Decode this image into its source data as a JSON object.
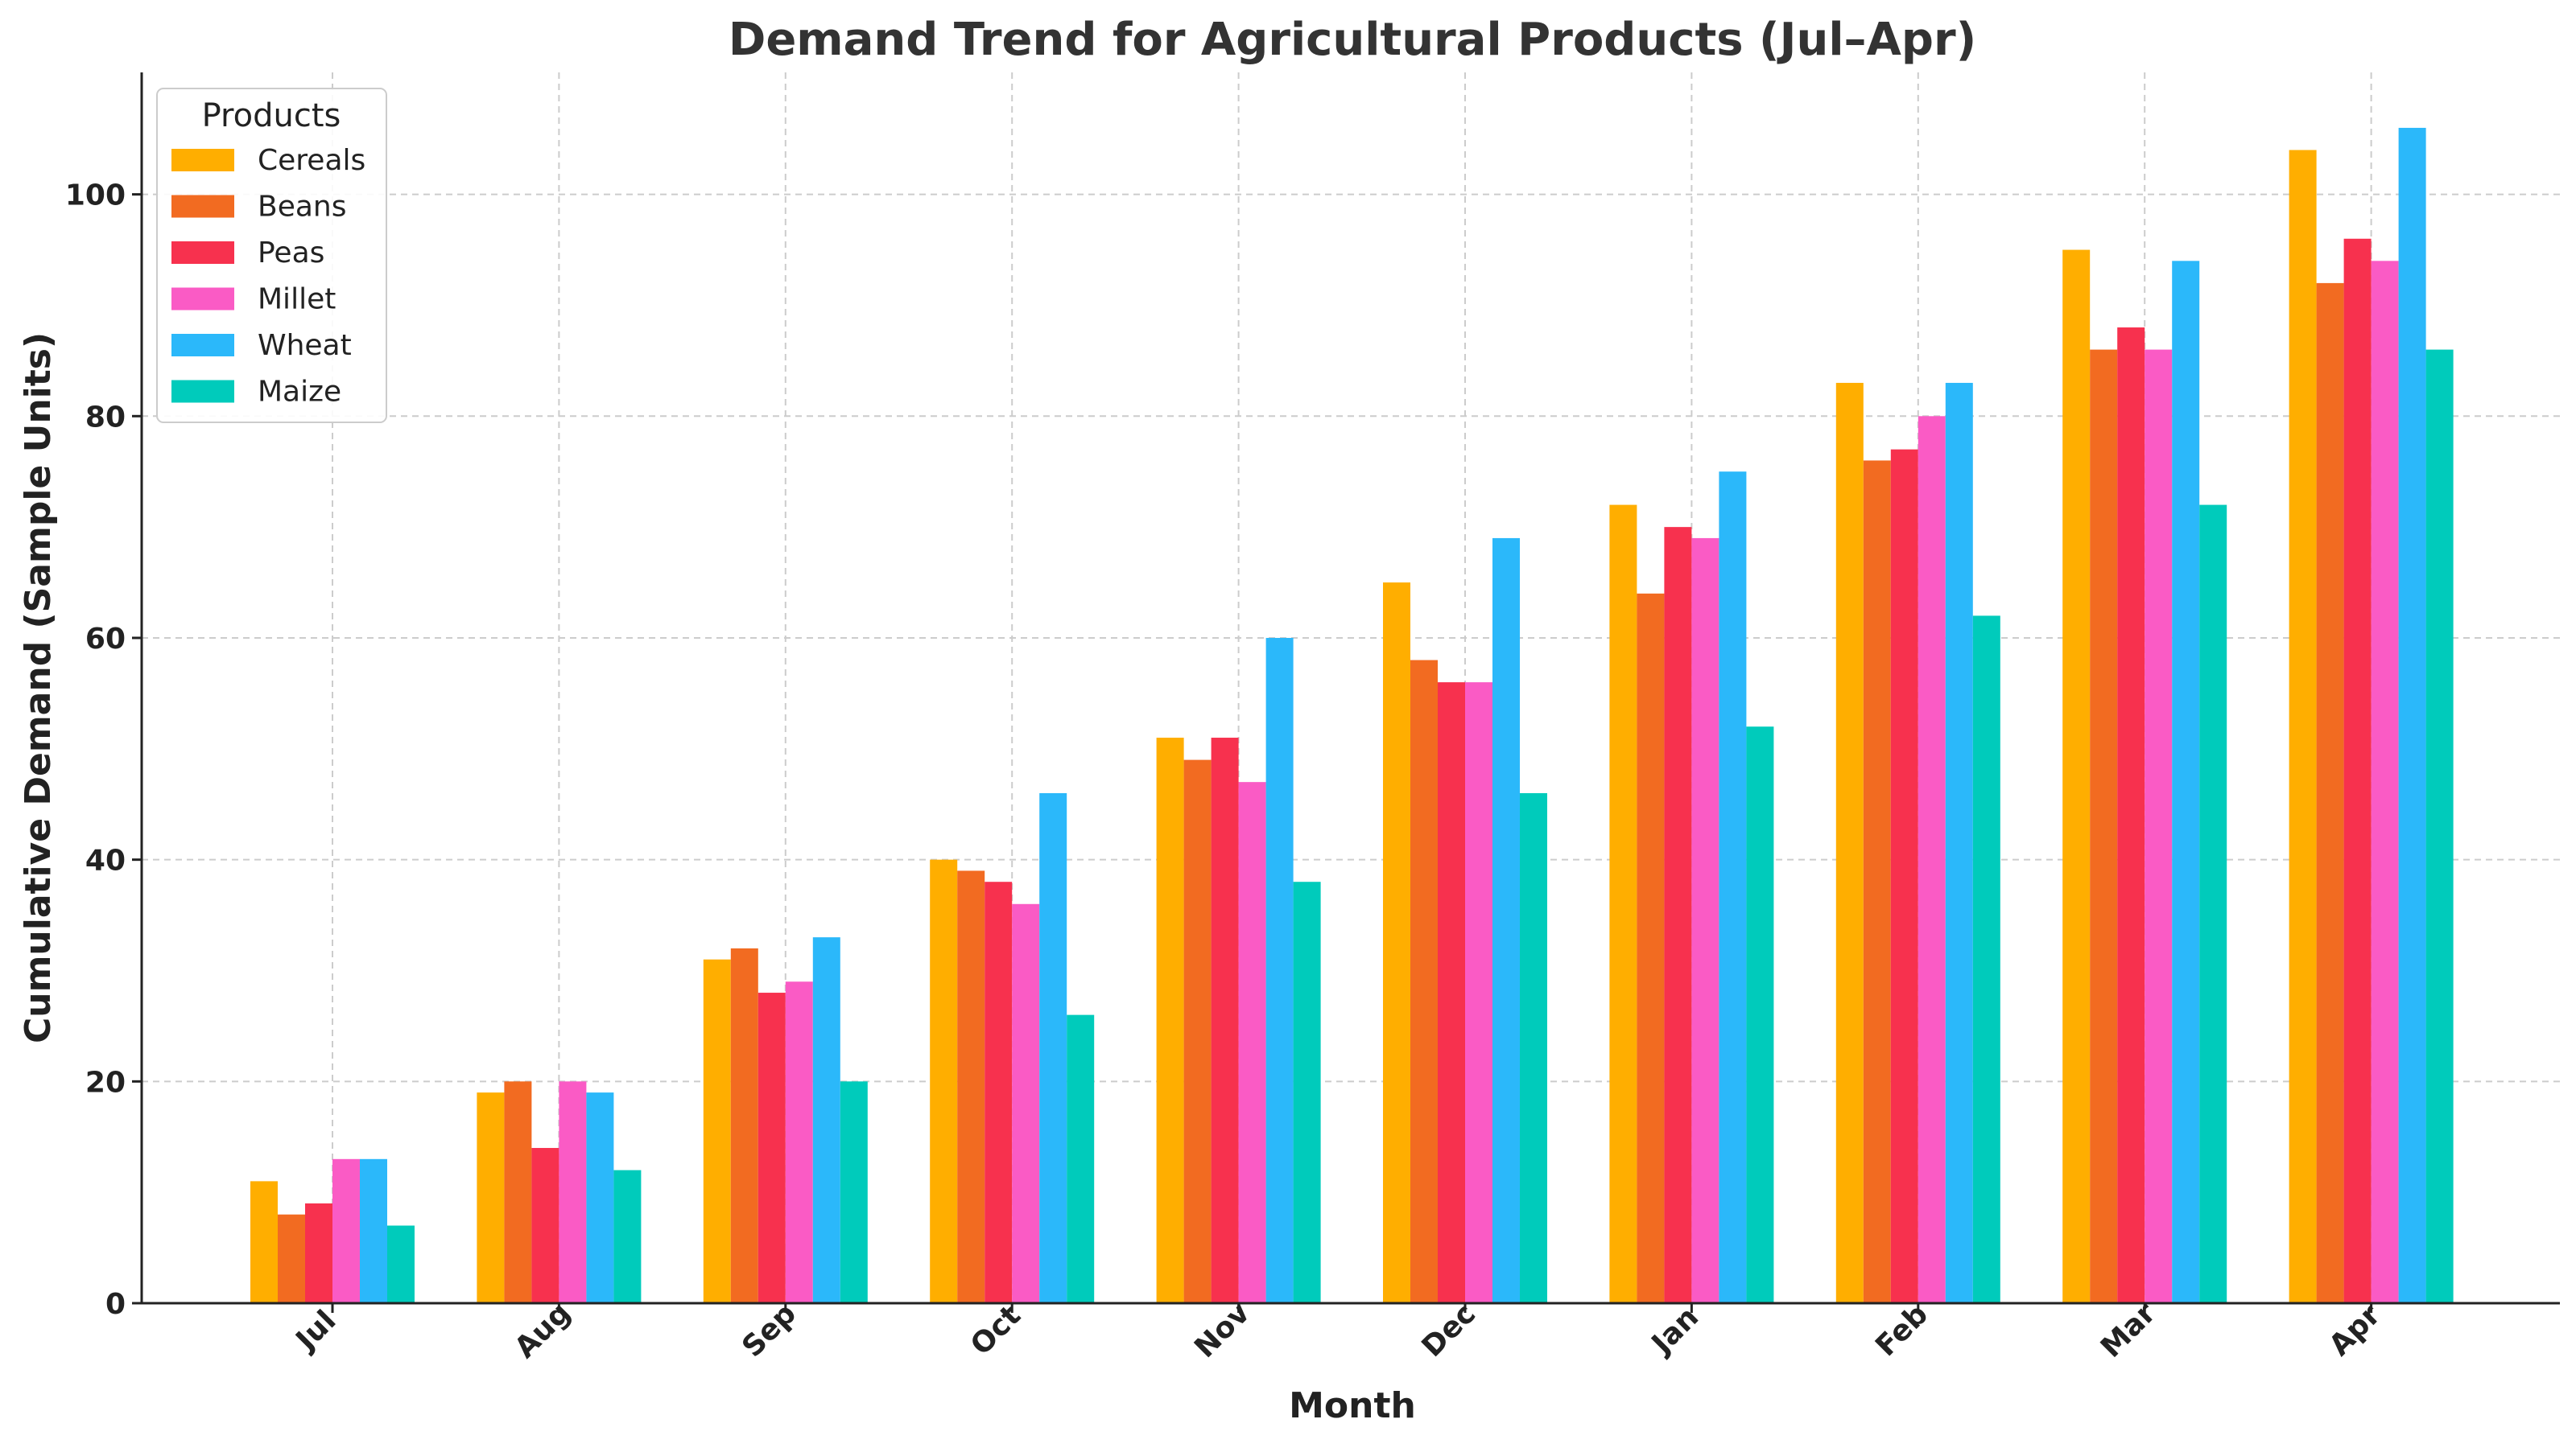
{
  "chart_data": {
    "type": "bar",
    "title": "Demand Trend for Agricultural Products (Jul–Apr)",
    "xlabel": "Month",
    "ylabel": "Cumulative Demand (Sample Units)",
    "categories": [
      "Jul",
      "Aug",
      "Sep",
      "Oct",
      "Nov",
      "Dec",
      "Jan",
      "Feb",
      "Mar",
      "Apr"
    ],
    "ylim": [
      0,
      111
    ],
    "yticks": [
      0,
      20,
      40,
      60,
      80,
      100
    ],
    "grid": true,
    "legend": {
      "title": "Products",
      "placement": "top-left"
    },
    "series": [
      {
        "name": "Cereals",
        "color": "#FFAE00",
        "values": [
          11,
          19,
          31,
          40,
          51,
          65,
          72,
          83,
          95,
          104
        ]
      },
      {
        "name": "Beans",
        "color": "#F26B21",
        "values": [
          8,
          20,
          32,
          39,
          49,
          58,
          64,
          76,
          86,
          92
        ]
      },
      {
        "name": "Peas",
        "color": "#F7314E",
        "values": [
          9,
          14,
          28,
          38,
          51,
          56,
          70,
          77,
          88,
          96
        ]
      },
      {
        "name": "Millet",
        "color": "#FA5BC5",
        "values": [
          13,
          20,
          29,
          36,
          47,
          56,
          69,
          80,
          86,
          94
        ]
      },
      {
        "name": "Wheat",
        "color": "#2BB8FA",
        "values": [
          13,
          19,
          33,
          46,
          60,
          69,
          75,
          83,
          94,
          106
        ]
      },
      {
        "name": "Maize",
        "color": "#00CBBB",
        "values": [
          7,
          12,
          20,
          26,
          38,
          46,
          52,
          62,
          72,
          86
        ]
      }
    ]
  }
}
